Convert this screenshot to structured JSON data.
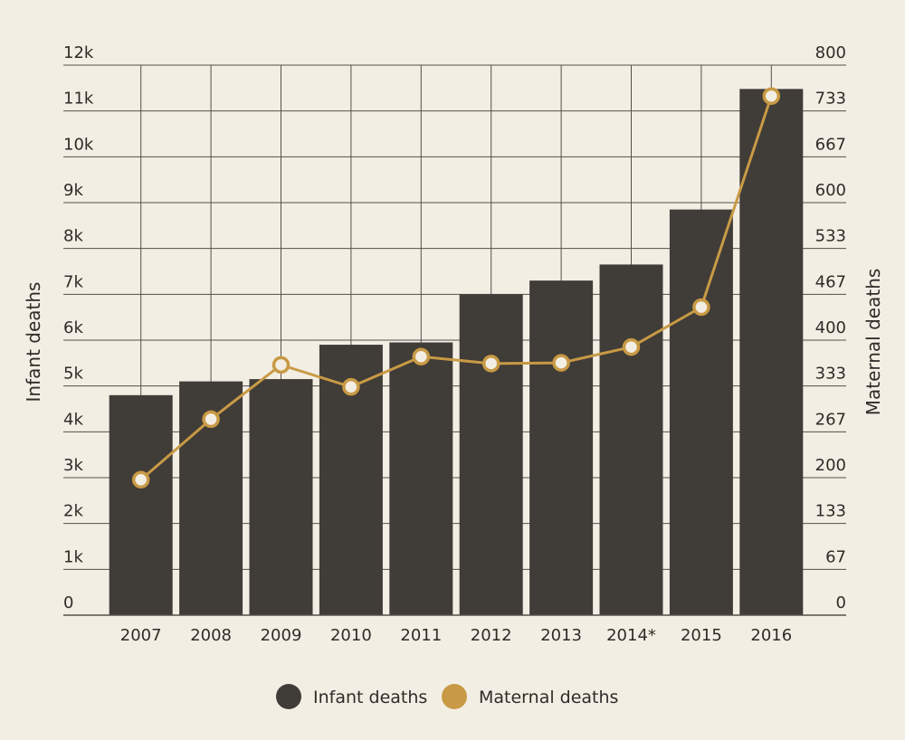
{
  "chart_data": {
    "type": "bar",
    "categories": [
      "2007",
      "2008",
      "2009",
      "2010",
      "2011",
      "2012",
      "2013",
      "2014*",
      "2015",
      "2016"
    ],
    "series": [
      {
        "name": "Infant deaths",
        "type": "bar",
        "axis": "left",
        "values": [
          4800,
          5100,
          5150,
          5900,
          5950,
          7000,
          7300,
          7650,
          8850,
          11480
        ]
      },
      {
        "name": "Maternal deaths",
        "type": "line",
        "axis": "right",
        "values": [
          197,
          285,
          364,
          332,
          376,
          366,
          367,
          390,
          448,
          755
        ]
      }
    ],
    "xlabel": "",
    "ylabel": "Infant deaths",
    "y2label": "Maternal deaths",
    "ylim": [
      0,
      12000
    ],
    "y2lim": [
      0,
      800
    ],
    "y_ticks": [
      "0",
      "1k",
      "2k",
      "3k",
      "4k",
      "5k",
      "6k",
      "7k",
      "8k",
      "9k",
      "10k",
      "11k",
      "12k"
    ],
    "y2_ticks": [
      "0",
      "67",
      "133",
      "200",
      "267",
      "333",
      "400",
      "467",
      "533",
      "600",
      "667",
      "733",
      "800"
    ],
    "grid": true,
    "legend_position": "bottom-center",
    "colors": {
      "background": "#f3eee4",
      "bar": "#403c37",
      "line": "#c89a45",
      "grid": "#55504a"
    }
  }
}
